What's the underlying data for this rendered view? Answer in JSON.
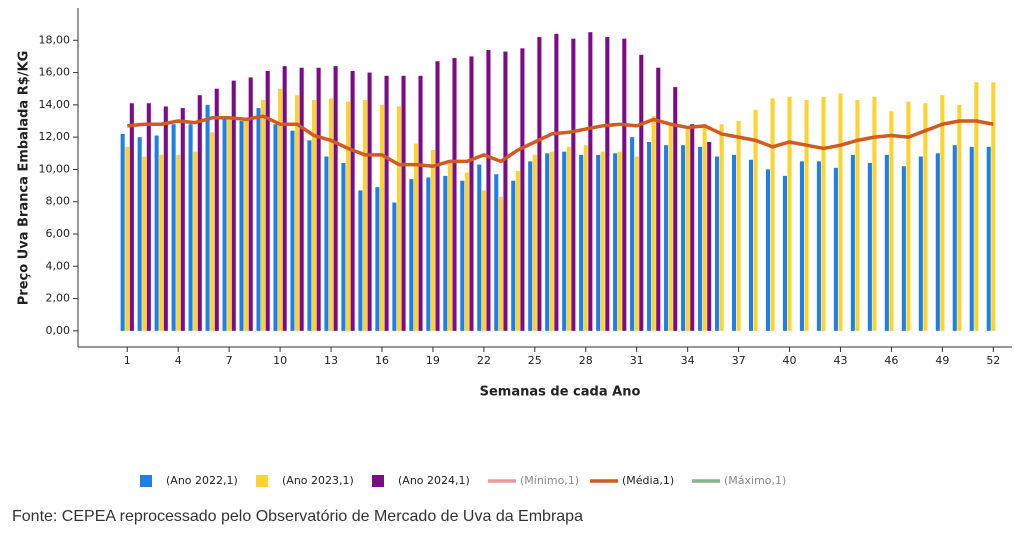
{
  "chart_data": {
    "type": "bar",
    "y_label": "Preço Uva Branca Embalada R$/KG",
    "x_label": "Semanas de cada Ano",
    "source": "Fonte: CEPEA reprocessado pelo Observatório de Mercado de Uva da Embrapa",
    "x": [
      1,
      2,
      3,
      4,
      5,
      6,
      7,
      8,
      9,
      10,
      11,
      12,
      13,
      14,
      15,
      16,
      17,
      18,
      19,
      20,
      21,
      22,
      23,
      24,
      25,
      26,
      27,
      28,
      29,
      30,
      31,
      32,
      33,
      34,
      35,
      36,
      37,
      38,
      39,
      40,
      41,
      42,
      43,
      44,
      45,
      46,
      47,
      48,
      49,
      50,
      51,
      52
    ],
    "xlim": [
      -1.9,
      53.1
    ],
    "xticks": [
      1,
      4,
      7,
      10,
      13,
      16,
      19,
      22,
      25,
      28,
      31,
      34,
      37,
      40,
      43,
      46,
      49,
      52
    ],
    "ylim": [
      -1,
      20
    ],
    "yticks": [
      {
        "value": 0,
        "label": "0,00"
      },
      {
        "value": 2,
        "label": "2,00"
      },
      {
        "value": 4,
        "label": "4,00"
      },
      {
        "value": 6,
        "label": "6,00"
      },
      {
        "value": 8,
        "label": "8,00"
      },
      {
        "value": 10,
        "label": "10,00"
      },
      {
        "value": 12,
        "label": "12,00"
      },
      {
        "value": 14,
        "label": "14,00"
      },
      {
        "value": 16,
        "label": "16,00"
      },
      {
        "value": 18,
        "label": "18,00"
      }
    ],
    "series": [
      {
        "name": "(Ano 2022,1)",
        "type": "bar",
        "color": "#1f7fe8",
        "visible": true,
        "values": [
          12.2,
          12.0,
          12.1,
          12.8,
          12.8,
          14.0,
          13.3,
          13.0,
          13.8,
          12.8,
          12.4,
          11.8,
          10.8,
          10.4,
          8.7,
          8.9,
          7.95,
          9.4,
          9.5,
          9.6,
          9.3,
          10.3,
          9.7,
          9.3,
          10.5,
          11.0,
          11.1,
          10.9,
          10.9,
          11.0,
          12.0,
          11.7,
          11.5,
          11.5,
          11.4,
          10.8,
          10.9,
          10.6,
          10.0,
          9.6,
          10.5,
          10.5,
          10.1,
          10.9,
          10.4,
          10.9,
          10.2,
          10.8,
          11.0,
          11.5,
          11.4,
          11.4
        ]
      },
      {
        "name": "(Ano 2023,1)",
        "type": "bar",
        "color": "#fdd32f",
        "visible": true,
        "values": [
          11.4,
          10.8,
          10.9,
          10.9,
          11.1,
          12.3,
          13.3,
          13.0,
          14.3,
          15.0,
          14.6,
          14.3,
          14.4,
          14.2,
          14.3,
          14.0,
          13.9,
          11.6,
          11.2,
          10.4,
          9.8,
          8.7,
          8.3,
          9.9,
          10.9,
          11.1,
          11.4,
          11.5,
          11.1,
          11.1,
          10.8,
          13.3,
          12.9,
          12.5,
          12.8,
          12.8,
          13.0,
          13.7,
          14.4,
          14.5,
          14.3,
          14.5,
          14.7,
          14.3,
          14.5,
          13.6,
          14.2,
          14.1,
          14.6,
          14.0,
          15.4,
          15.4
        ]
      },
      {
        "name": "(Ano 2024,1)",
        "type": "bar",
        "color": "#7d0a86",
        "visible": true,
        "values": [
          14.1,
          14.1,
          13.9,
          13.8,
          14.6,
          15.0,
          15.5,
          15.7,
          16.1,
          16.4,
          16.3,
          16.3,
          16.4,
          16.1,
          16.0,
          15.8,
          15.8,
          15.8,
          16.7,
          16.9,
          17.0,
          17.4,
          17.3,
          17.5,
          18.2,
          18.4,
          18.1,
          18.5,
          18.2,
          18.1,
          17.1,
          16.3,
          15.1,
          12.8,
          11.7,
          null,
          null,
          null,
          null,
          null,
          null,
          null,
          null,
          null,
          null,
          null,
          null,
          null,
          null,
          null,
          null,
          null
        ]
      },
      {
        "name": "(Mínimo,1)",
        "type": "line",
        "color": "#f08a8f",
        "visible": false
      },
      {
        "name": "(Média,1)",
        "type": "line",
        "color": "#cf5a22",
        "visible": true,
        "values": [
          12.7,
          12.8,
          12.8,
          13.0,
          12.9,
          13.2,
          13.2,
          13.1,
          13.3,
          12.8,
          12.8,
          12.1,
          11.8,
          11.3,
          10.9,
          10.9,
          10.3,
          10.3,
          10.2,
          10.5,
          10.5,
          10.9,
          10.5,
          11.2,
          11.7,
          12.2,
          12.3,
          12.5,
          12.7,
          12.8,
          12.7,
          13.1,
          12.8,
          12.6,
          12.7,
          12.2,
          12.0,
          11.8,
          11.4,
          11.7,
          11.5,
          11.3,
          11.5,
          11.8,
          12.0,
          12.1,
          12.0,
          12.4,
          12.8,
          13.0,
          13.0,
          12.8
        ]
      },
      {
        "name": "(Máximo,1)",
        "type": "line",
        "color": "#7aab7f",
        "visible": false
      }
    ]
  }
}
